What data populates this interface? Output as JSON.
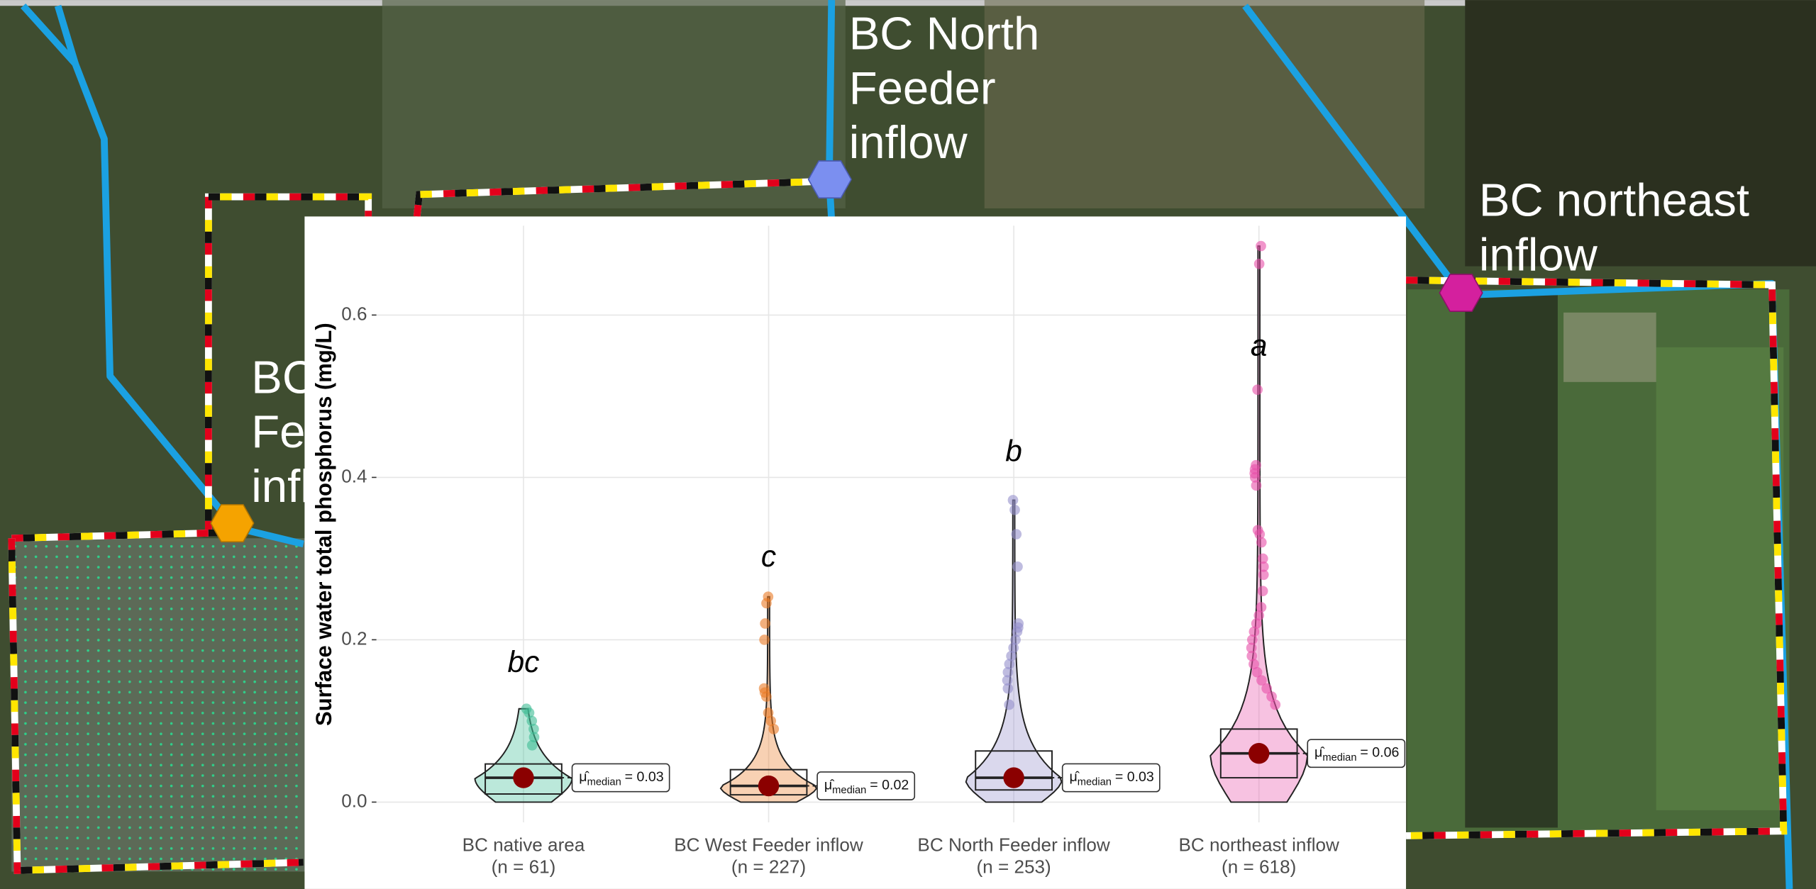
{
  "map": {
    "labels": [
      {
        "lines": [
          "BC North",
          "Feeder",
          "inflow"
        ]
      },
      {
        "lines": [
          "BC northeast",
          "inflow"
        ]
      },
      {
        "lines": [
          "BC",
          "Fe",
          "infl"
        ]
      }
    ]
  },
  "chart_data": {
    "type": "violin",
    "y_label": "Surface water total phosphorus (mg/L)",
    "categories": [
      "BC native area",
      "BC West Feeder inflow",
      "BC North Feeder inflow",
      "BC northeast inflow"
    ],
    "count_labels": [
      "(n = 61)",
      "(n = 227)",
      "(n = 253)",
      "(n = 618)"
    ],
    "ylim": [
      -0.025,
      0.71
    ],
    "yticks": [
      {
        "value": 0,
        "label": "0.0"
      },
      0.2,
      0.4,
      0.6
    ],
    "grid": true,
    "median_symbol": "μ̂",
    "median_subscript": "median",
    "groups": [
      {
        "color": "#3dbc95",
        "min": 0,
        "q1": 0.01,
        "median": 0.03,
        "q3": 0.047,
        "max": 0.115,
        "median_label": "= 0.03",
        "letter": "bc",
        "letter_y": 0.17,
        "points": [
          0.115,
          0.11,
          0.1,
          0.09,
          0.08,
          0.07
        ]
      },
      {
        "color": "#ea7a25",
        "min": 0,
        "q1": 0.009,
        "median": 0.02,
        "q3": 0.04,
        "max": 0.253,
        "median_label": "= 0.02",
        "letter": "c",
        "letter_y": 0.3,
        "points": [
          0.253,
          0.245,
          0.22,
          0.2,
          0.14,
          0.135,
          0.13,
          0.11,
          0.1,
          0.09
        ]
      },
      {
        "color": "#948fcc",
        "min": 0,
        "q1": 0.015,
        "median": 0.03,
        "q3": 0.063,
        "max": 0.372,
        "median_label": "= 0.03",
        "letter": "b",
        "letter_y": 0.43,
        "points": [
          0.372,
          0.36,
          0.33,
          0.29,
          0.22,
          0.215,
          0.21,
          0.2,
          0.19,
          0.18,
          0.17,
          0.16,
          0.15,
          0.14,
          0.12
        ]
      },
      {
        "color": "#e84fa8",
        "min": 0,
        "q1": 0.03,
        "median": 0.06,
        "q3": 0.09,
        "max": 0.685,
        "median_label": "= 0.06",
        "letter": "a",
        "letter_y": 0.56,
        "points": [
          0.685,
          0.663,
          0.508,
          0.415,
          0.41,
          0.405,
          0.4,
          0.39,
          0.335,
          0.33,
          0.32,
          0.3,
          0.29,
          0.28,
          0.26,
          0.24,
          0.23,
          0.22,
          0.21,
          0.2,
          0.19,
          0.18,
          0.17,
          0.16,
          0.15,
          0.14,
          0.13,
          0.12
        ]
      }
    ]
  }
}
